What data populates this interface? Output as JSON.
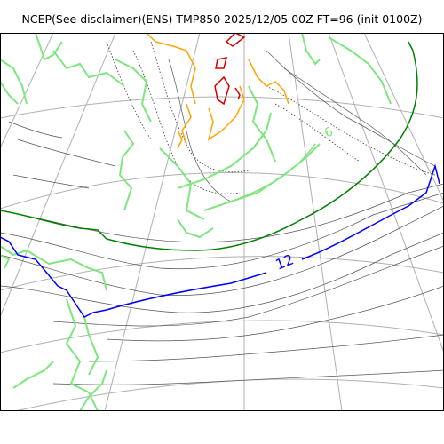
{
  "title": "NCEP(See disclaimer)(ENS) TMP850 2025/12/05 00Z FT=96 (init 0100Z)",
  "contour_labels": {
    "blue": "12",
    "light_green": "6"
  },
  "colors": {
    "coastline": "#7ee67e",
    "blue_contour": "#0000ff",
    "green_contour": "#008000",
    "orange_contour": "#ffa500",
    "red_contour": "#d40000",
    "grid": "#b0b0b0",
    "thin_contour": "#555555"
  }
}
